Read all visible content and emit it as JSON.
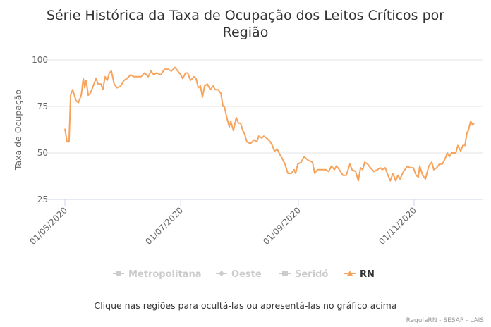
{
  "chart_data": {
    "type": "line",
    "title_lines": [
      "Série Histórica da Taxa de Ocupação dos Leitos Críticos por",
      "Região"
    ],
    "xlabel": "",
    "ylabel": "Taxa de Ocupação",
    "x_unit": "days since 01/05/2020",
    "xlim": [
      0,
      220
    ],
    "ylim": [
      25,
      100
    ],
    "yticks": [
      25,
      50,
      75,
      100
    ],
    "xticks": [
      {
        "day": 0,
        "label": "01/05/2020"
      },
      {
        "day": 61,
        "label": "01/07/2020"
      },
      {
        "day": 123,
        "label": "01/09/2020"
      },
      {
        "day": 184,
        "label": "01/11/2020"
      }
    ],
    "grid": true,
    "legend_position": "bottom",
    "series": [
      {
        "name": "Metropolitana",
        "visible": false,
        "color": "#cccccc",
        "marker": "circle",
        "points": []
      },
      {
        "name": "Oeste",
        "visible": false,
        "color": "#cccccc",
        "marker": "diamond",
        "points": []
      },
      {
        "name": "Seridó",
        "visible": false,
        "color": "#cccccc",
        "marker": "square",
        "points": []
      },
      {
        "name": "RN",
        "visible": true,
        "color": "#f7a35c",
        "marker": "triangle",
        "points": [
          [
            0,
            63
          ],
          [
            1.1,
            56
          ],
          [
            2.2,
            56
          ],
          [
            3,
            81
          ],
          [
            4.1,
            84
          ],
          [
            5.9,
            78
          ],
          [
            7.1,
            77
          ],
          [
            8.6,
            81
          ],
          [
            9.7,
            90
          ],
          [
            10.4,
            85
          ],
          [
            11.2,
            89
          ],
          [
            12.3,
            81
          ],
          [
            13.4,
            82
          ],
          [
            14.9,
            86
          ],
          [
            16.4,
            90
          ],
          [
            17.5,
            87
          ],
          [
            19,
            87
          ],
          [
            20,
            84
          ],
          [
            21.2,
            91
          ],
          [
            22.3,
            89
          ],
          [
            23.4,
            93
          ],
          [
            24.5,
            94
          ],
          [
            26,
            87
          ],
          [
            27.5,
            85
          ],
          [
            29.4,
            86
          ],
          [
            31.2,
            89
          ],
          [
            32.7,
            90
          ],
          [
            34.6,
            92
          ],
          [
            36.4,
            91
          ],
          [
            38.7,
            91
          ],
          [
            40.1,
            91
          ],
          [
            42,
            93
          ],
          [
            43.9,
            91
          ],
          [
            45.4,
            94
          ],
          [
            46.8,
            92
          ],
          [
            48.3,
            93
          ],
          [
            50.6,
            92
          ],
          [
            52.4,
            95
          ],
          [
            54.3,
            95
          ],
          [
            56.1,
            94
          ],
          [
            58,
            96
          ],
          [
            59.5,
            94
          ],
          [
            61,
            92
          ],
          [
            62.1,
            90
          ],
          [
            63.6,
            93
          ],
          [
            64.7,
            93
          ],
          [
            66.2,
            89
          ],
          [
            68,
            91
          ],
          [
            69.1,
            90
          ],
          [
            70.3,
            85
          ],
          [
            71.4,
            86
          ],
          [
            72.5,
            80
          ],
          [
            73.6,
            86
          ],
          [
            75.1,
            87
          ],
          [
            76.6,
            84
          ],
          [
            78.1,
            86
          ],
          [
            79.2,
            84
          ],
          [
            80.7,
            84
          ],
          [
            82.2,
            82
          ],
          [
            83.3,
            75
          ],
          [
            84,
            75
          ],
          [
            85.1,
            70
          ],
          [
            86.6,
            64
          ],
          [
            87.4,
            67
          ],
          [
            88.8,
            62
          ],
          [
            90.3,
            69
          ],
          [
            91.4,
            66
          ],
          [
            92.6,
            66
          ],
          [
            93.7,
            62
          ],
          [
            94.4,
            61
          ],
          [
            95.9,
            56
          ],
          [
            97.8,
            55
          ],
          [
            99.6,
            57
          ],
          [
            101.1,
            56
          ],
          [
            102.2,
            59
          ],
          [
            103.7,
            58
          ],
          [
            104.8,
            59
          ],
          [
            106.3,
            58
          ],
          [
            108.2,
            56
          ],
          [
            109.3,
            54
          ],
          [
            110.4,
            51
          ],
          [
            111.9,
            52
          ],
          [
            113.4,
            49
          ],
          [
            114.5,
            47
          ],
          [
            116,
            44
          ],
          [
            117.5,
            39
          ],
          [
            119.3,
            39
          ],
          [
            120.8,
            41
          ],
          [
            121.6,
            39
          ],
          [
            122.7,
            44
          ],
          [
            124.5,
            45
          ],
          [
            126,
            48
          ],
          [
            128.3,
            46
          ],
          [
            130.5,
            45
          ],
          [
            131.6,
            39
          ],
          [
            133.1,
            41
          ],
          [
            135.7,
            41
          ],
          [
            137.5,
            41
          ],
          [
            139,
            40
          ],
          [
            140.5,
            43
          ],
          [
            142,
            41
          ],
          [
            143.1,
            43
          ],
          [
            144.6,
            41
          ],
          [
            146.5,
            38
          ],
          [
            148.3,
            38
          ],
          [
            150.2,
            44
          ],
          [
            151.3,
            41
          ],
          [
            153.2,
            40
          ],
          [
            154.6,
            35
          ],
          [
            155.8,
            42
          ],
          [
            156.9,
            41
          ],
          [
            158,
            45
          ],
          [
            159.5,
            44
          ],
          [
            161,
            42
          ],
          [
            162.8,
            40
          ],
          [
            164.7,
            41
          ],
          [
            166.2,
            42
          ],
          [
            167.3,
            41
          ],
          [
            168.8,
            42
          ],
          [
            169.9,
            39
          ],
          [
            171.4,
            35
          ],
          [
            172.9,
            39
          ],
          [
            174.3,
            35
          ],
          [
            175.5,
            38
          ],
          [
            176.6,
            36
          ],
          [
            178.4,
            40
          ],
          [
            180.7,
            43
          ],
          [
            181.8,
            42
          ],
          [
            183.6,
            42
          ],
          [
            185.1,
            38
          ],
          [
            186.2,
            37
          ],
          [
            187,
            43
          ],
          [
            188.5,
            38
          ],
          [
            190,
            36
          ],
          [
            191.8,
            43
          ],
          [
            193.3,
            45
          ],
          [
            194.4,
            41
          ],
          [
            195.9,
            42
          ],
          [
            197.4,
            44
          ],
          [
            198.9,
            44
          ],
          [
            200.4,
            47
          ],
          [
            201.5,
            50
          ],
          [
            202.6,
            48
          ],
          [
            203.7,
            50
          ],
          [
            206,
            50
          ],
          [
            207.1,
            54
          ],
          [
            208.6,
            51
          ],
          [
            209.7,
            54
          ],
          [
            210.8,
            54
          ],
          [
            211.9,
            61
          ],
          [
            212.6,
            62
          ],
          [
            213.8,
            67
          ],
          [
            214.9,
            65
          ],
          [
            215.6,
            66
          ]
        ]
      }
    ]
  },
  "caption": "Clique nas regiões para ocultá-las ou apresentá-las no gráfico acima",
  "credit": "RegulaRN - SESAP - LAIS"
}
